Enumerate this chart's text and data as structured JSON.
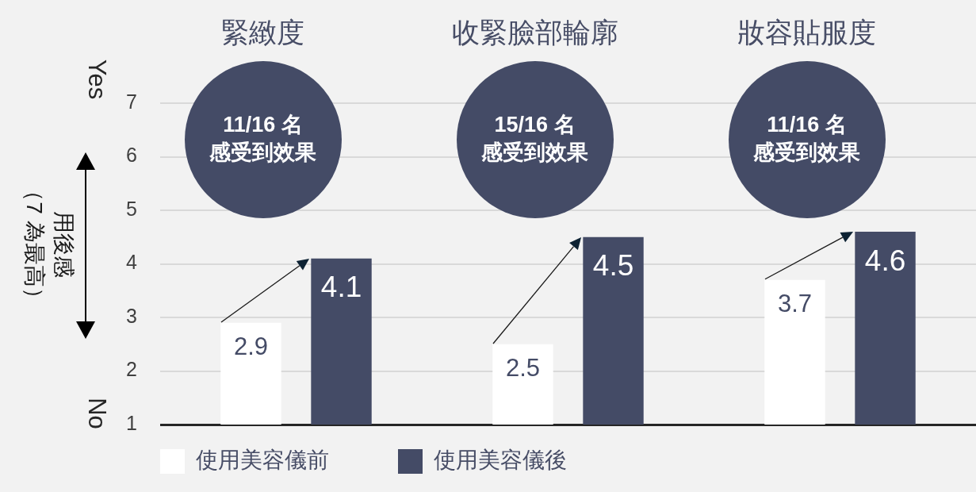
{
  "chart_data": {
    "type": "bar",
    "categories": [
      "緊緻度",
      "收緊臉部輪廓",
      "妝容貼服度"
    ],
    "series": [
      {
        "name": "使用美容儀前",
        "color": "#ffffff",
        "values": [
          2.9,
          2.5,
          3.7
        ]
      },
      {
        "name": "使用美容儀後",
        "color": "#444b66",
        "values": [
          4.1,
          4.5,
          4.6
        ]
      }
    ],
    "ylabel": "用後感（7 為最高）",
    "ylim": [
      1,
      7
    ],
    "yticks": [
      1,
      2,
      3,
      4,
      5,
      6,
      7
    ],
    "grid": "y",
    "legend": "bottom left",
    "data_labels": true,
    "annotations": [
      "11/16 名",
      "感受到效果",
      "15/16 名",
      "感受到效果",
      "11/16 名",
      "感受到效果",
      "Yes",
      "No"
    ]
  }
}
